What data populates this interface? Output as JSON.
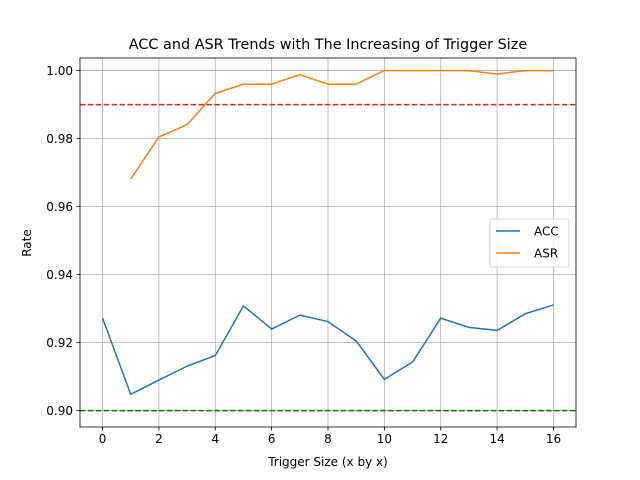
{
  "chart_data": {
    "type": "line",
    "title": "ACC and ASR Trends with The Increasing of Trigger Size",
    "xlabel": "Trigger Size (x by x)",
    "ylabel": "Rate",
    "xlim": [
      -0.8,
      16.8
    ],
    "ylim": [
      0.8952,
      1.0037
    ],
    "xticks": [
      0,
      2,
      4,
      6,
      8,
      10,
      12,
      14,
      16
    ],
    "xtick_labels": [
      "0",
      "2",
      "4",
      "6",
      "8",
      "10",
      "12",
      "14",
      "16"
    ],
    "yticks": [
      0.9,
      0.92,
      0.94,
      0.96,
      0.98,
      1.0
    ],
    "ytick_labels": [
      "0.90",
      "0.92",
      "0.94",
      "0.96",
      "0.98",
      "1.00"
    ],
    "grid": true,
    "legend_position": "center-right",
    "series": [
      {
        "name": "ACC",
        "color": "#1f77b4",
        "x": [
          0,
          1,
          2,
          3,
          4,
          5,
          6,
          7,
          8,
          9,
          10,
          11,
          12,
          13,
          14,
          15,
          16
        ],
        "y": [
          0.9272,
          0.9048,
          0.909,
          0.9131,
          0.9162,
          0.9308,
          0.924,
          0.9281,
          0.9262,
          0.9205,
          0.9092,
          0.9143,
          0.9272,
          0.9245,
          0.9236,
          0.9285,
          0.9311
        ]
      },
      {
        "name": "ASR",
        "color": "#ff7f0e",
        "x": [
          1,
          2,
          3,
          4,
          5,
          6,
          7,
          8,
          9,
          10,
          11,
          12,
          13,
          14,
          15,
          16
        ],
        "y": [
          0.9681,
          0.9805,
          0.9841,
          0.9933,
          0.996,
          0.996,
          0.9988,
          0.996,
          0.996,
          1.0,
          1.0,
          1.0,
          1.0,
          0.999,
          1.0,
          1.0
        ]
      }
    ],
    "reference_lines": [
      {
        "y": 0.99,
        "color": "#d62728",
        "style": "dashed"
      },
      {
        "y": 0.9,
        "color": "#008000",
        "style": "dashed"
      }
    ]
  }
}
